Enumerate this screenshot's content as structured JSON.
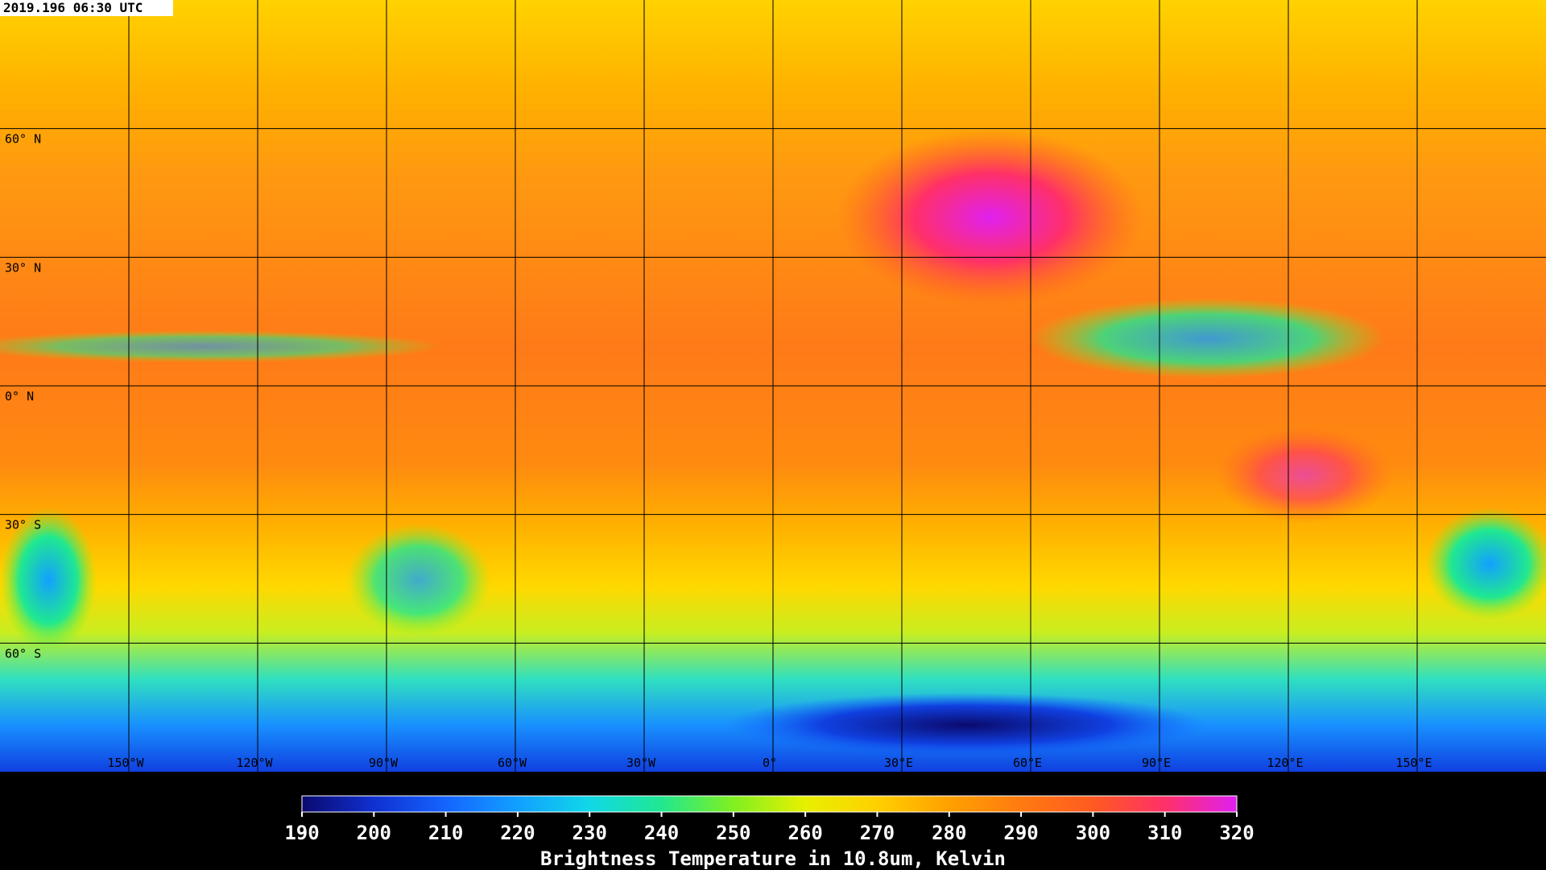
{
  "timestamp": "2019.196 06:30 UTC",
  "map": {
    "xlim": [
      -180,
      180
    ],
    "ylim": [
      -90,
      90
    ],
    "lat_ticks": [
      {
        "value": 60,
        "label": "60° N"
      },
      {
        "value": 30,
        "label": "30° N"
      },
      {
        "value": 0,
        "label": "0° N"
      },
      {
        "value": -30,
        "label": "30° S"
      },
      {
        "value": -60,
        "label": "60° S"
      }
    ],
    "lon_ticks": [
      {
        "value": -150,
        "label": "150°W"
      },
      {
        "value": -120,
        "label": "120°W"
      },
      {
        "value": -90,
        "label": "90°W"
      },
      {
        "value": -60,
        "label": "60°W"
      },
      {
        "value": -30,
        "label": "30°W"
      },
      {
        "value": 0,
        "label": "0°"
      },
      {
        "value": 30,
        "label": "30°E"
      },
      {
        "value": 60,
        "label": "60°E"
      },
      {
        "value": 90,
        "label": "90°E"
      },
      {
        "value": 120,
        "label": "120°E"
      },
      {
        "value": 150,
        "label": "150°E"
      }
    ]
  },
  "colorbar": {
    "title": "Brightness Temperature in 10.8um, Kelvin",
    "lim": [
      190,
      320
    ],
    "ticks": [
      190,
      200,
      210,
      220,
      230,
      240,
      250,
      260,
      270,
      280,
      290,
      300,
      310,
      320
    ],
    "colors": [
      "#0a0a6e",
      "#1030d0",
      "#1464ff",
      "#12a0ff",
      "#10d8e8",
      "#20e890",
      "#80f020",
      "#e8f000",
      "#ffd000",
      "#ffa000",
      "#ff7a10",
      "#ff5a20",
      "#ff3068",
      "#e020f0"
    ]
  }
}
